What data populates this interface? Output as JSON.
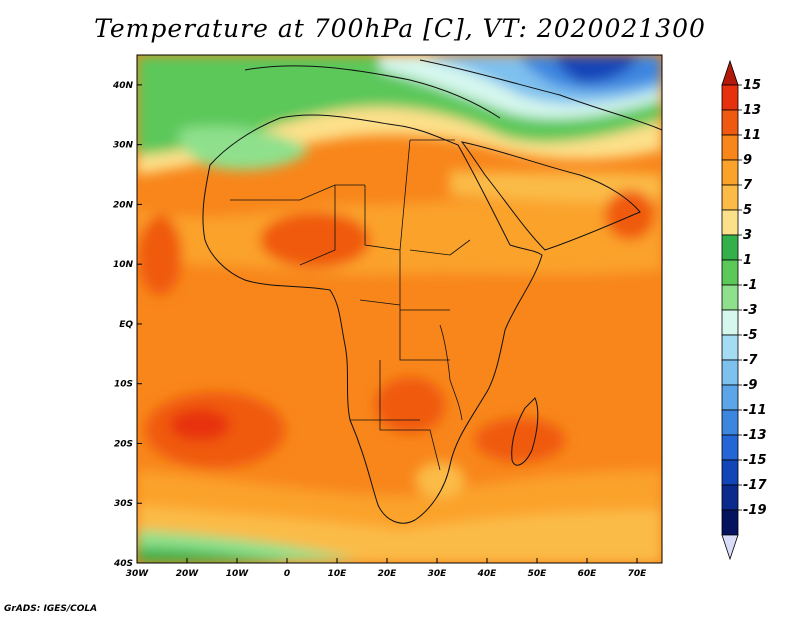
{
  "title": "Temperature at 700hPa [C], VT: 2020021300",
  "credit": "GrADS: IGES/COLA",
  "map": {
    "lon_range": [
      -30,
      75
    ],
    "lat_range": [
      -40,
      45
    ],
    "lat_ticks": [
      {
        "value": 40,
        "label": "40N"
      },
      {
        "value": 30,
        "label": "30N"
      },
      {
        "value": 20,
        "label": "20N"
      },
      {
        "value": 10,
        "label": "10N"
      },
      {
        "value": 0,
        "label": "EQ"
      },
      {
        "value": -10,
        "label": "10S"
      },
      {
        "value": -20,
        "label": "20S"
      },
      {
        "value": -30,
        "label": "30S"
      },
      {
        "value": -40,
        "label": "40S"
      }
    ],
    "lon_ticks": [
      {
        "value": -30,
        "label": "30W"
      },
      {
        "value": -20,
        "label": "20W"
      },
      {
        "value": -10,
        "label": "10W"
      },
      {
        "value": 0,
        "label": "0"
      },
      {
        "value": 10,
        "label": "10E"
      },
      {
        "value": 20,
        "label": "20E"
      },
      {
        "value": 30,
        "label": "30E"
      },
      {
        "value": 40,
        "label": "40E"
      },
      {
        "value": 50,
        "label": "50E"
      },
      {
        "value": 60,
        "label": "60E"
      },
      {
        "value": 70,
        "label": "70E"
      }
    ]
  },
  "colorbar": {
    "labels": [
      "15",
      "13",
      "11",
      "9",
      "7",
      "5",
      "3",
      "1",
      "-1",
      "-3",
      "-5",
      "-7",
      "-9",
      "-11",
      "-13",
      "-15",
      "-17",
      "-19"
    ],
    "colors": [
      "#e7300e",
      "#f05a10",
      "#f8861b",
      "#fba22a",
      "#fbbb46",
      "#fde08a",
      "#34b04a",
      "#5cc85a",
      "#8fe08c",
      "#d6f7ee",
      "#a4dcf4",
      "#7ec0ee",
      "#5ba5e8",
      "#3d86e0",
      "#2466d6",
      "#1245b8",
      "#0a2a8e",
      "#05125e"
    ],
    "top_arrow_color": "#b41a0c",
    "bottom_arrow_color": "#d8dcf8"
  }
}
